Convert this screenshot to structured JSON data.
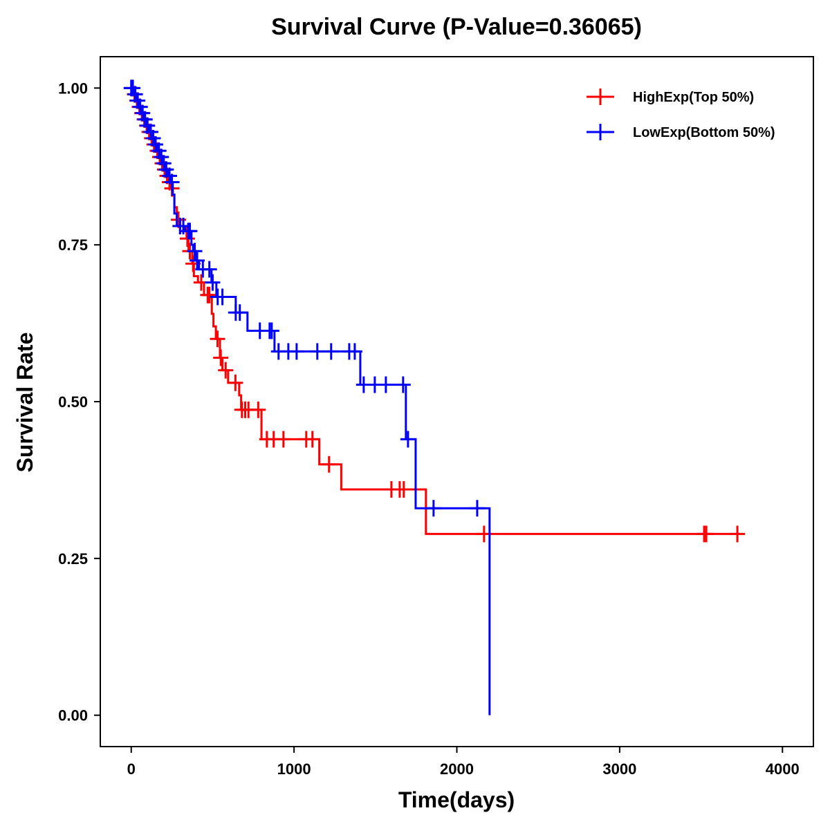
{
  "chart_data": {
    "type": "line",
    "subtype": "kaplan-meier",
    "title": "Survival Curve (P-Value=0.36065)",
    "xlabel": "Time(days)",
    "ylabel": "Survival Rate",
    "xlim": [
      -190,
      4190
    ],
    "ylim": [
      -0.05,
      1.05
    ],
    "xticks": [
      0,
      1000,
      2000,
      3000,
      4000
    ],
    "xtick_labels": [
      "0",
      "1000",
      "2000",
      "3000",
      "4000"
    ],
    "yticks": [
      0,
      0.25,
      0.5,
      0.75,
      1.0
    ],
    "ytick_labels": [
      "0.00",
      "0.25",
      "0.50",
      "0.75",
      "1.00"
    ],
    "grid": false,
    "legend_position": "top-right",
    "series": [
      {
        "name": "HighExp(Top 50%)",
        "color": "#ff0000",
        "end_time": 3740,
        "steps": [
          [
            10,
            0.99
          ],
          [
            25,
            0.98
          ],
          [
            40,
            0.97
          ],
          [
            55,
            0.96
          ],
          [
            70,
            0.95
          ],
          [
            85,
            0.94
          ],
          [
            100,
            0.93
          ],
          [
            115,
            0.92
          ],
          [
            130,
            0.91
          ],
          [
            150,
            0.9
          ],
          [
            165,
            0.89
          ],
          [
            180,
            0.88
          ],
          [
            195,
            0.87
          ],
          [
            210,
            0.86
          ],
          [
            225,
            0.85
          ],
          [
            240,
            0.84
          ],
          [
            255,
            0.83
          ],
          [
            265,
            0.81
          ],
          [
            280,
            0.79
          ],
          [
            295,
            0.78
          ],
          [
            340,
            0.76
          ],
          [
            352,
            0.74
          ],
          [
            375,
            0.72
          ],
          [
            385,
            0.7
          ],
          [
            410,
            0.69
          ],
          [
            447,
            0.67
          ],
          [
            495,
            0.64
          ],
          [
            505,
            0.62
          ],
          [
            520,
            0.6
          ],
          [
            545,
            0.57
          ],
          [
            560,
            0.55
          ],
          [
            595,
            0.53
          ],
          [
            663,
            0.51
          ],
          [
            675,
            0.487
          ],
          [
            800,
            0.44
          ],
          [
            1155,
            0.4
          ],
          [
            1290,
            0.36
          ],
          [
            1810,
            0.289
          ]
        ],
        "censored": [
          5,
          20,
          35,
          50,
          65,
          80,
          95,
          110,
          125,
          140,
          160,
          175,
          190,
          205,
          220,
          235,
          250,
          290,
          300,
          345,
          360,
          380,
          430,
          470,
          480,
          530,
          550,
          580,
          640,
          680,
          700,
          720,
          780,
          833,
          875,
          935,
          1075,
          1113,
          1215,
          1598,
          1649,
          1674,
          2167,
          3519,
          3532,
          3723
        ]
      },
      {
        "name": "LowExp(Bottom 50%)",
        "color": "#0000ff",
        "end_time": 2201,
        "steps": [
          [
            15,
            0.99
          ],
          [
            30,
            0.98
          ],
          [
            45,
            0.97
          ],
          [
            60,
            0.96
          ],
          [
            75,
            0.95
          ],
          [
            95,
            0.94
          ],
          [
            110,
            0.93
          ],
          [
            125,
            0.92
          ],
          [
            145,
            0.91
          ],
          [
            160,
            0.9
          ],
          [
            175,
            0.89
          ],
          [
            190,
            0.88
          ],
          [
            205,
            0.87
          ],
          [
            225,
            0.86
          ],
          [
            245,
            0.85
          ],
          [
            255,
            0.83
          ],
          [
            265,
            0.8
          ],
          [
            280,
            0.78
          ],
          [
            330,
            0.772
          ],
          [
            370,
            0.75
          ],
          [
            380,
            0.74
          ],
          [
            395,
            0.725
          ],
          [
            416,
            0.711
          ],
          [
            493,
            0.69
          ],
          [
            523,
            0.667
          ],
          [
            642,
            0.642
          ],
          [
            714,
            0.613
          ],
          [
            880,
            0.58
          ],
          [
            1407,
            0.527
          ],
          [
            1687,
            0.44
          ],
          [
            1747,
            0.33
          ],
          [
            2201,
            0.0
          ]
        ],
        "censored": [
          0,
          10,
          25,
          40,
          55,
          70,
          85,
          100,
          120,
          135,
          150,
          170,
          185,
          200,
          215,
          235,
          250,
          300,
          320,
          350,
          360,
          390,
          405,
          440,
          480,
          500,
          531,
          560,
          642,
          667,
          790,
          850,
          863,
          905,
          965,
          1016,
          1143,
          1228,
          1339,
          1373,
          1428,
          1496,
          1564,
          1670,
          1700,
          1857,
          2125
        ]
      }
    ]
  }
}
